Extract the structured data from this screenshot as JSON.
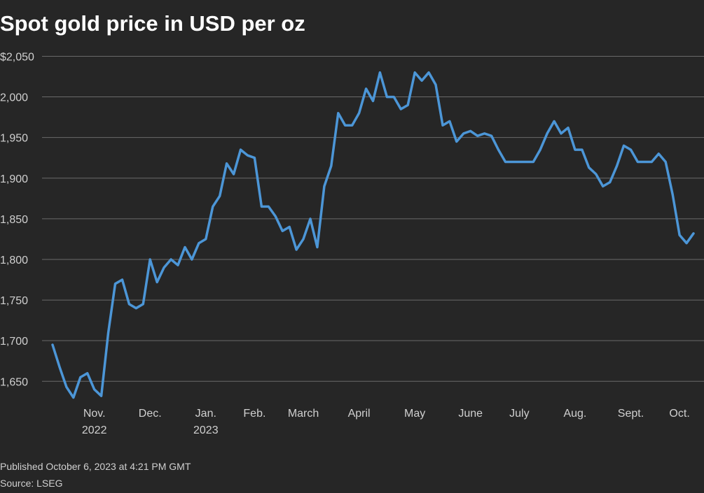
{
  "chart_data": {
    "type": "line",
    "title": "Spot gold price in USD per oz",
    "published": "Published October 6, 2023 at 4:21 PM GMT",
    "source": "Source: LSEG",
    "categories": [
      null,
      null,
      null,
      null,
      null,
      null,
      "Nov.\n2022",
      null,
      null,
      null,
      null,
      null,
      null,
      null,
      "Dec.",
      null,
      null,
      null,
      null,
      null,
      null,
      null,
      "Jan.\n2023",
      null,
      null,
      null,
      null,
      null,
      null,
      "Feb.",
      null,
      null,
      null,
      null,
      null,
      null,
      "March",
      null,
      null,
      null,
      null,
      null,
      null,
      null,
      "April",
      null,
      null,
      null,
      null,
      null,
      null,
      null,
      "May",
      null,
      null,
      null,
      null,
      null,
      null,
      null,
      "June",
      null,
      null,
      null,
      null,
      null,
      null,
      "July",
      null,
      null,
      null,
      null,
      null,
      null,
      null,
      "Aug.",
      null,
      null,
      null,
      null,
      null,
      null,
      null,
      "Sept.",
      null,
      null,
      null,
      null,
      null,
      null,
      "Oct.",
      null,
      null
    ],
    "series": [
      {
        "color": "#4c96d7",
        "values": [
          1695,
          1668,
          1643,
          1630,
          1655,
          1660,
          1640,
          1632,
          1710,
          1770,
          1775,
          1745,
          1740,
          1745,
          1800,
          1772,
          1790,
          1800,
          1793,
          1815,
          1800,
          1820,
          1825,
          1865,
          1878,
          1918,
          1905,
          1935,
          1928,
          1925,
          1865,
          1865,
          1853,
          1835,
          1840,
          1812,
          1825,
          1850,
          1815,
          1890,
          1915,
          1980,
          1965,
          1965,
          1980,
          2010,
          1995,
          2030,
          2000,
          2000,
          1985,
          1990,
          2030,
          2020,
          2030,
          2015,
          1965,
          1970,
          1945,
          1955,
          1958,
          1952,
          1955,
          1952,
          1935,
          1920,
          1920,
          1920,
          1920,
          1920,
          1935,
          1955,
          1970,
          1955,
          1962,
          1935,
          1935,
          1913,
          1905,
          1890,
          1895,
          1915,
          1940,
          1935,
          1920,
          1920,
          1920,
          1930,
          1920,
          1880,
          1830,
          1820,
          1832
        ]
      }
    ],
    "ylim": [
      1627,
      2059
    ],
    "yticks": [
      1650,
      1700,
      1750,
      1800,
      1850,
      1900,
      1950,
      2000,
      {
        "value": 2050,
        "label": "$2,050"
      }
    ],
    "ytick_labels": [
      "1,650",
      "1,700",
      "1,750",
      "1,800",
      "1,850",
      "1,900",
      "1,950",
      "2,000"
    ],
    "grid": true
  }
}
